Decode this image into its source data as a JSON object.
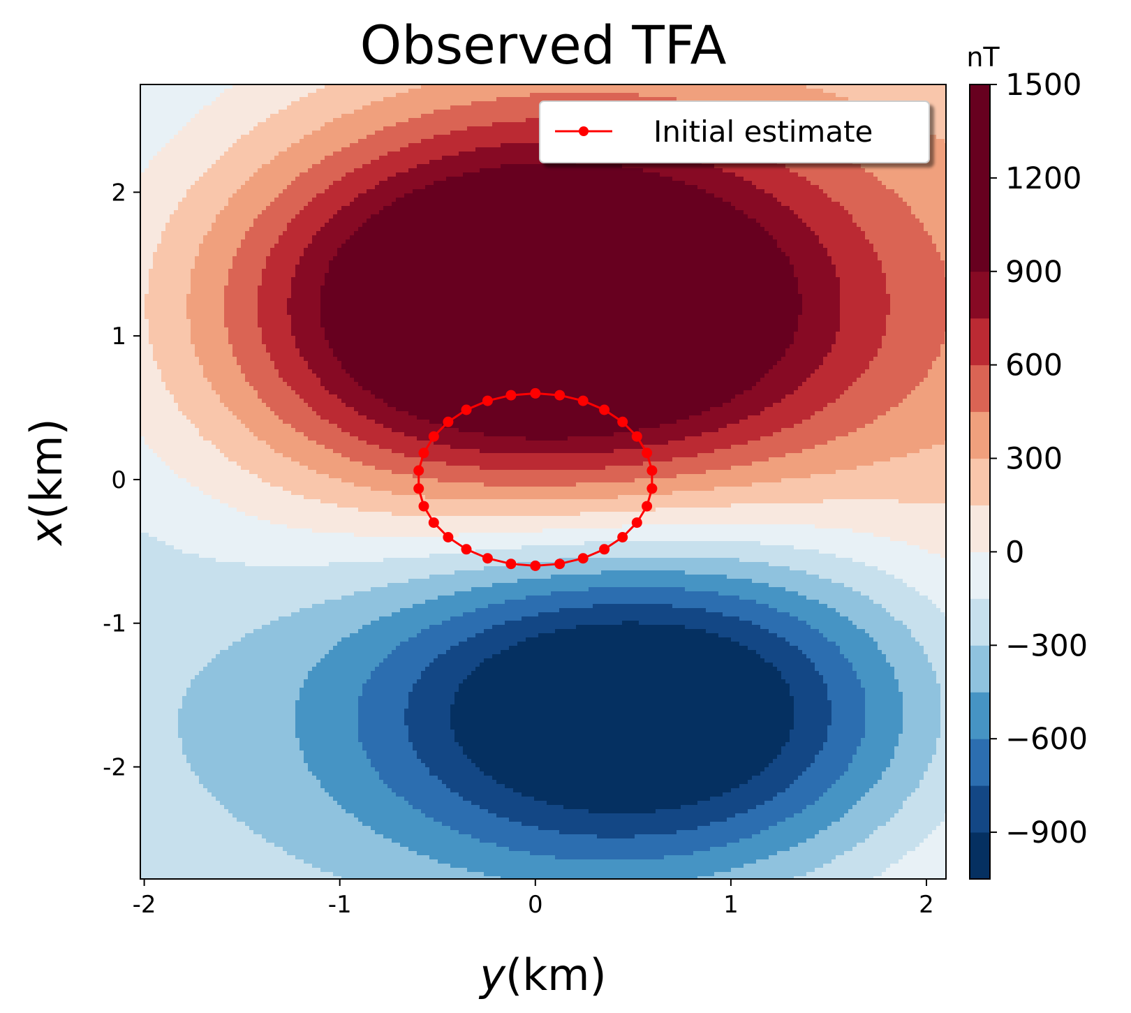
{
  "chart_data": {
    "type": "heatmap",
    "subtype": "filled-contour",
    "title": "Observed TFA",
    "xlabel": "y(km)",
    "ylabel": "x(km)",
    "xlim": [
      -2.02,
      2.1
    ],
    "ylim": [
      -2.78,
      2.75
    ],
    "x_ticks": [
      -2,
      -1,
      0,
      1,
      2
    ],
    "x_tick_labels": [
      "-2",
      "-1",
      "0",
      "1",
      "2"
    ],
    "y_ticks": [
      -2,
      -1,
      0,
      1,
      2
    ],
    "y_tick_labels": [
      "-2",
      "-1",
      "0",
      "1",
      "2"
    ],
    "grid": false,
    "colorbar": {
      "unit": "nT",
      "min": -1050,
      "max": 1500,
      "levels": [
        -1050,
        -900,
        -750,
        -600,
        -450,
        -300,
        -150,
        0,
        150,
        300,
        450,
        600,
        750,
        900,
        1500
      ],
      "colors": [
        "#053061",
        "#134785",
        "#2c6eb0",
        "#4694c4",
        "#8fc2de",
        "#c7e0ed",
        "#e8f1f6",
        "#f8e8df",
        "#f9c6ab",
        "#f0a07d",
        "#da6454",
        "#bb2a33",
        "#870a24",
        "#67001f"
      ],
      "ticks": [
        -900,
        -600,
        -300,
        0,
        300,
        600,
        900,
        1200,
        1500
      ],
      "tick_labels": [
        "−900",
        "−600",
        "−300",
        "0",
        "300",
        "600",
        "900",
        "1200",
        "1500"
      ]
    },
    "field_model": {
      "description_of_sources": "dipole-like anomaly",
      "positive_peak": {
        "y": 0.0,
        "x": 1.2,
        "value": 1500
      },
      "negative_peak": {
        "y": 0.55,
        "x": -1.6,
        "value": -1050
      }
    },
    "series": [
      {
        "name": "Initial estimate",
        "type": "line-with-markers",
        "color": "#ff0000",
        "center": {
          "y": 0.0,
          "x": 0.0
        },
        "radius": 0.6,
        "n_points": 30
      }
    ],
    "legend": {
      "position": "top-right",
      "entries": [
        "Initial estimate"
      ]
    }
  }
}
